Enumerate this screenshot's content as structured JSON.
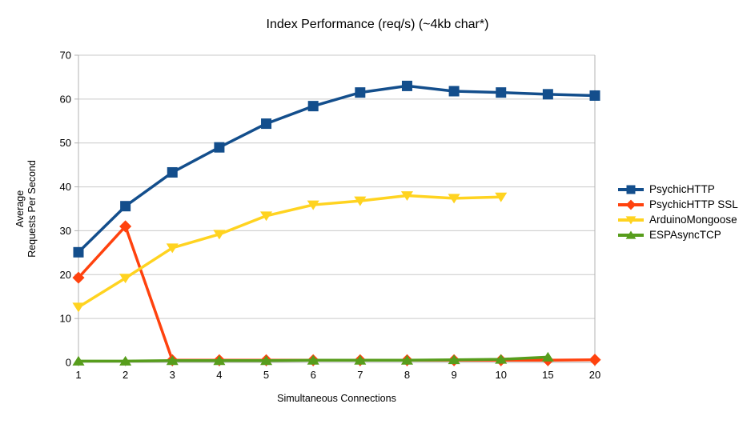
{
  "chart_data": {
    "type": "line",
    "title": "Index Performance (req/s) (~4kb char*)",
    "xlabel": "Simultaneous Connections",
    "ylabel": [
      "Average",
      "Requests Per Second"
    ],
    "categories": [
      "1",
      "2",
      "3",
      "4",
      "5",
      "6",
      "7",
      "8",
      "9",
      "10",
      "15",
      "20"
    ],
    "ylim": [
      0,
      70
    ],
    "ytick_step": 10,
    "grid": "horizontal-only",
    "legend_position": "right",
    "colors": {
      "grid": "#c9c9c9",
      "axis": "#b3b3b3",
      "text": "#000000",
      "background": "#ffffff"
    },
    "series": [
      {
        "name": "PsychicHTTP",
        "color": "#134E8C",
        "marker": "square",
        "values": [
          25.1,
          35.6,
          43.3,
          49.0,
          54.4,
          58.4,
          61.5,
          63.0,
          61.8,
          61.5,
          61.1,
          60.8
        ]
      },
      {
        "name": "PsychicHTTP SSL",
        "color": "#FF420E",
        "marker": "diamond",
        "values": [
          19.3,
          31.0,
          0.5,
          0.5,
          0.5,
          0.5,
          0.5,
          0.5,
          0.5,
          0.5,
          0.5,
          0.6
        ]
      },
      {
        "name": "ArduinoMongoose",
        "color": "#FFD320",
        "marker": "triangle-down",
        "values": [
          12.6,
          19.2,
          26.1,
          29.2,
          33.4,
          35.9,
          36.8,
          38.0,
          37.4,
          37.7,
          null,
          null
        ]
      },
      {
        "name": "ESPAsyncTCP",
        "color": "#579D1C",
        "marker": "triangle-up",
        "values": [
          0.3,
          0.3,
          0.4,
          0.4,
          0.4,
          0.5,
          0.5,
          0.5,
          0.6,
          0.7,
          1.2,
          null
        ]
      }
    ]
  }
}
